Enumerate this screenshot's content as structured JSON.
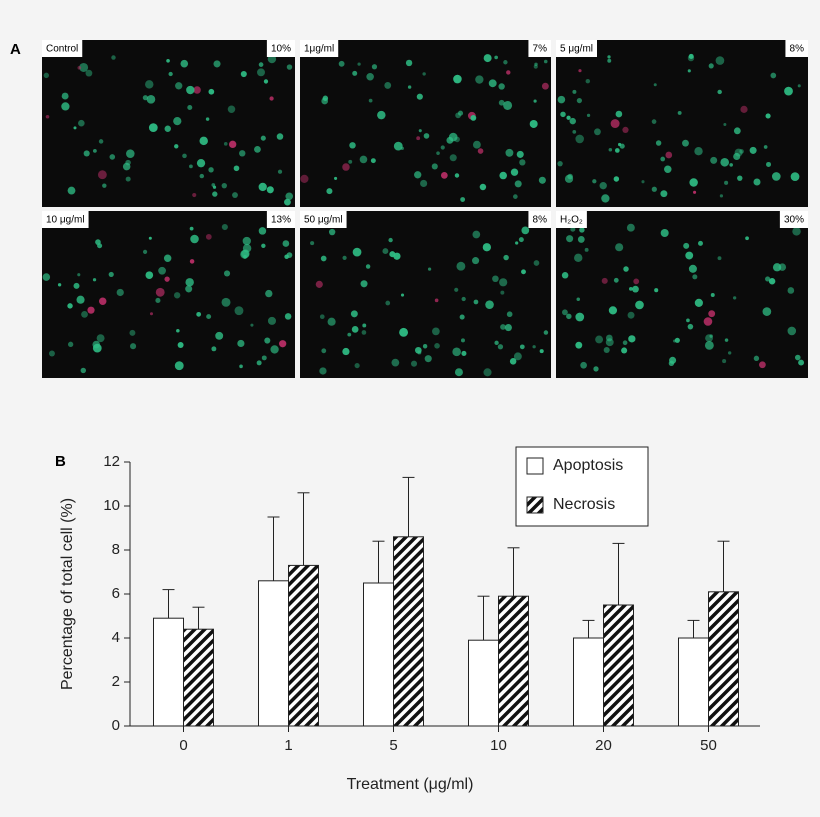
{
  "panel_a": {
    "label": "A",
    "tiles": [
      {
        "name": "Control",
        "percent": "10%"
      },
      {
        "name": "1μg/ml",
        "percent": "7%"
      },
      {
        "name": "5 μg/ml",
        "percent": "8%"
      },
      {
        "name": "10 μg/ml",
        "percent": "13%"
      },
      {
        "name": "50 μg/ml",
        "percent": "8%"
      },
      {
        "name": "H₂O₂",
        "percent": "30%"
      }
    ]
  },
  "chart_data": {
    "type": "bar",
    "panel_label": "B",
    "x_label": "Treatment (μg/ml)",
    "y_label": "Percentage of total cell (%)",
    "categories": [
      "0",
      "1",
      "5",
      "10",
      "20",
      "50"
    ],
    "series": [
      {
        "name": "Apoptosis",
        "color": "#ffffff",
        "values": [
          4.9,
          6.6,
          6.5,
          3.9,
          4.0,
          4.0
        ],
        "errors": [
          1.3,
          2.9,
          1.9,
          2.0,
          0.8,
          0.8
        ]
      },
      {
        "name": "Necrosis",
        "color": "hatched",
        "values": [
          4.4,
          7.3,
          8.6,
          5.9,
          5.5,
          6.1
        ],
        "errors": [
          1.0,
          3.3,
          2.7,
          2.2,
          2.8,
          2.3
        ]
      }
    ],
    "ylim": [
      0,
      12
    ],
    "yticks": [
      0,
      2,
      4,
      6,
      8,
      10,
      12
    ],
    "legend": "top-right"
  }
}
